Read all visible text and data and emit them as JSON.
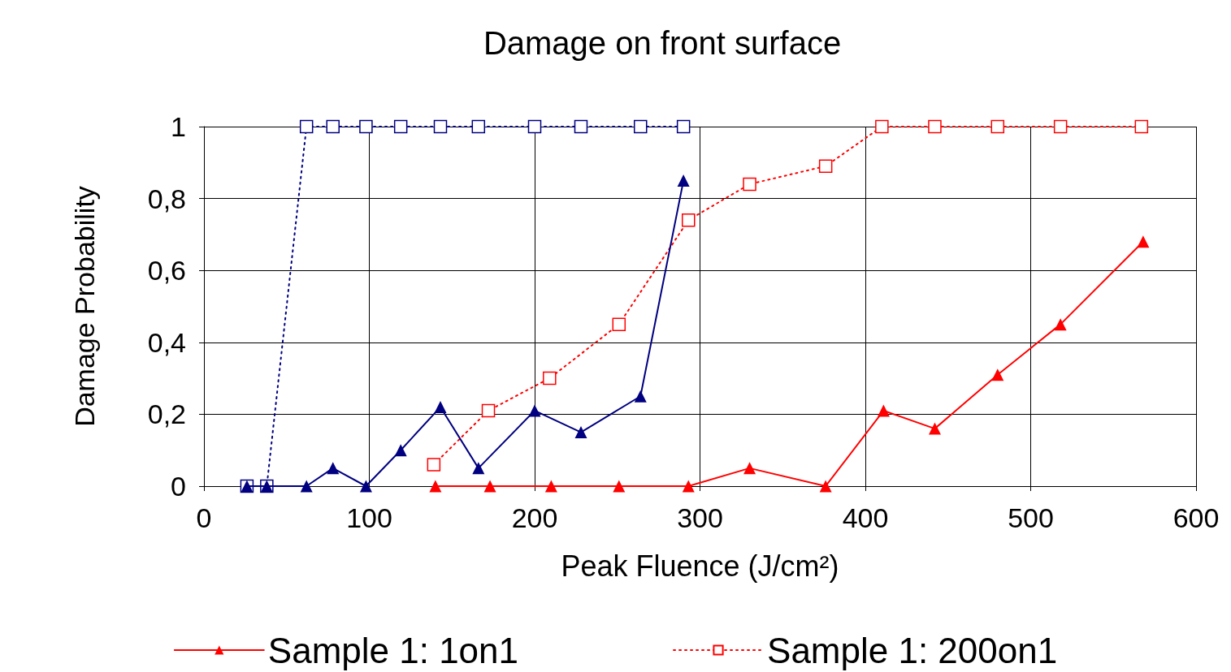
{
  "chart_data": {
    "type": "line",
    "title": "Damage on front surface",
    "xlabel": "Peak Fluence (J/cm²)",
    "ylabel": "Damage Probability",
    "xlim": [
      0,
      600
    ],
    "xticks": [
      0,
      100,
      200,
      300,
      400,
      500,
      600
    ],
    "ylim": [
      0,
      1
    ],
    "yticks": [
      0,
      {
        "value": 0.2,
        "label": "0,2"
      },
      {
        "value": 0.4,
        "label": "0,4"
      },
      {
        "value": 0.6,
        "label": "0,6"
      },
      {
        "value": 0.8,
        "label": "0,8"
      },
      1
    ],
    "grid": true,
    "legend": "bottom",
    "series": [
      {
        "name": "Sample 1: 1on1",
        "color": "#ff0000",
        "marker": "triangle",
        "line_style": "solid",
        "x": [
          140,
          173,
          210,
          251,
          293,
          330,
          376,
          411,
          442,
          480,
          518,
          568
        ],
        "values": [
          0,
          0,
          0,
          0,
          0,
          0.05,
          0,
          0.21,
          0.16,
          0.31,
          0.45,
          0.68
        ]
      },
      {
        "name": "Sample 1: 200on1",
        "color": "#ff0000",
        "marker": "square",
        "line_style": "dotted",
        "x": [
          139,
          172,
          209,
          251,
          293,
          330,
          376,
          410,
          442,
          480,
          518,
          567
        ],
        "values": [
          0.06,
          0.21,
          0.3,
          0.45,
          0.74,
          0.84,
          0.89,
          1,
          1,
          1,
          1,
          1
        ]
      },
      {
        "color": "#000080",
        "marker": "square",
        "line_style": "dotted",
        "x": [
          26,
          38,
          62,
          78,
          98,
          119,
          143,
          166,
          200,
          228,
          264,
          290
        ],
        "values": [
          0,
          0,
          1,
          1,
          1,
          1,
          1,
          1,
          1,
          1,
          1,
          1
        ]
      },
      {
        "color": "#000080",
        "marker": "triangle",
        "line_style": "solid",
        "x": [
          26,
          38,
          62,
          78,
          98,
          119,
          143,
          166,
          200,
          228,
          264,
          290
        ],
        "values": [
          0,
          0,
          0,
          0.05,
          0,
          0.1,
          0.22,
          0.05,
          0.21,
          0.15,
          0.25,
          0.85
        ]
      }
    ]
  }
}
